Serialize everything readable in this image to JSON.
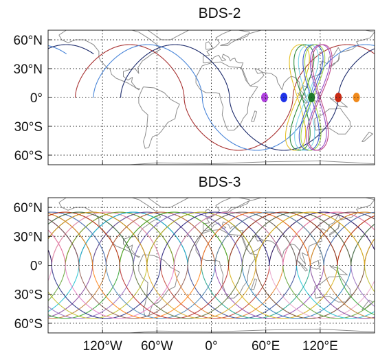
{
  "chart_data": [
    {
      "type": "line",
      "title": "BDS-2",
      "xlabel": "",
      "ylabel": "",
      "xlim": [
        -180,
        180
      ],
      "ylim": [
        -70,
        70
      ],
      "x_ticks": [
        -120,
        -60,
        0,
        60,
        120
      ],
      "x_tick_labels": [
        "120°W",
        "60°W",
        "0°",
        "60°E",
        "120°E"
      ],
      "y_ticks": [
        60,
        30,
        0,
        -30,
        -60
      ],
      "y_tick_labels": [
        "60°N",
        "30°N",
        "0°",
        "30°S",
        "60°S"
      ],
      "grid": true,
      "igso_figure8": [
        {
          "lon": 95,
          "amp": 55,
          "color": "#e6c229"
        },
        {
          "lon": 100,
          "amp": 55,
          "color": "#2e8b3a"
        },
        {
          "lon": 105,
          "amp": 55,
          "color": "#7fd6e8"
        },
        {
          "lon": 110,
          "amp": 55,
          "color": "#3a5ccc"
        },
        {
          "lon": 112,
          "amp": 55,
          "color": "#a4d94a"
        },
        {
          "lon": 118,
          "amp": 55,
          "color": "#9a4fc9"
        },
        {
          "lon": 120,
          "amp": 55,
          "color": "#c04a8a"
        }
      ],
      "meo_tracks": [
        {
          "lon0": -150,
          "color": "#a83232"
        },
        {
          "lon0": -130,
          "color": "#4a86d9"
        },
        {
          "lon0": -100,
          "color": "#1c2a6b"
        }
      ],
      "geo_points": [
        {
          "lon": 58.75,
          "lat": 0,
          "color": "#b040e0"
        },
        {
          "lon": 80,
          "lat": 0,
          "color": "#1f33e8"
        },
        {
          "lon": 110.5,
          "lat": 0,
          "color": "#1f7a2a"
        },
        {
          "lon": 140,
          "lat": 0,
          "color": "#c82a14"
        },
        {
          "lon": 160,
          "lat": 0,
          "color": "#f08a1c"
        }
      ]
    },
    {
      "type": "line",
      "title": "BDS-3",
      "xlabel": "",
      "ylabel": "",
      "xlim": [
        -180,
        180
      ],
      "ylim": [
        -70,
        70
      ],
      "x_ticks": [
        -120,
        -60,
        0,
        60,
        120
      ],
      "x_tick_labels": [
        "120°W",
        "60°W",
        "0°",
        "60°E",
        "120°E"
      ],
      "y_ticks": [
        60,
        30,
        0,
        -30,
        -60
      ],
      "y_tick_labels": [
        "60°N",
        "30°N",
        "0°",
        "30°S",
        "60°S"
      ],
      "grid": true,
      "meo_track_count": 24,
      "meo_colors": [
        "#c0392b",
        "#e67e22",
        "#2c3e8f",
        "#16a085",
        "#8e44ad",
        "#d4ac0d",
        "#1f77b4",
        "#6b3e1f",
        "#e8a0c8",
        "#5aa02c",
        "#17becf",
        "#7f3f98",
        "#c0762b",
        "#2ca02c",
        "#9467bd",
        "#bcbd22",
        "#1a237e",
        "#e377c2",
        "#8c564b",
        "#ff7f0e",
        "#4682b4",
        "#b22222",
        "#556b2f",
        "#daa520"
      ]
    }
  ]
}
